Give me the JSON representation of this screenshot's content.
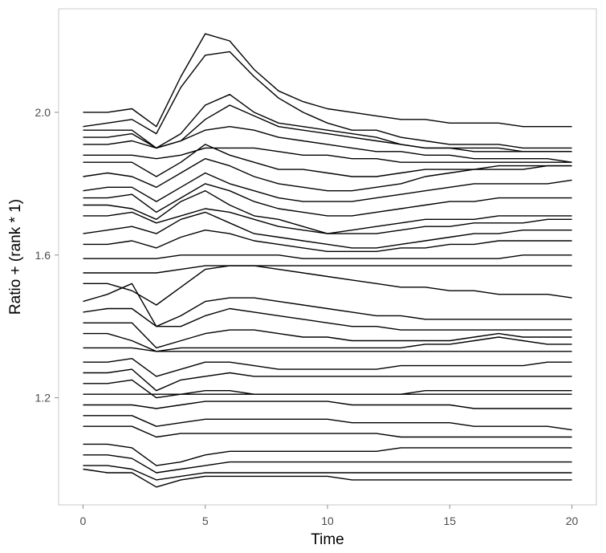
{
  "chart_data": {
    "type": "line",
    "title": "",
    "xlabel": "Time",
    "ylabel": "Ratio + (rank * 1)",
    "xlim": [
      -1,
      21
    ],
    "ylim": [
      0.9,
      2.29
    ],
    "x_ticks": [
      0,
      5,
      10,
      15,
      20
    ],
    "x_tick_labels": [
      "0",
      "5",
      "10",
      "15",
      "20"
    ],
    "y_ticks": [
      1.2,
      1.6,
      2.0
    ],
    "y_tick_labels": [
      "1.2",
      "1.6",
      "2.0"
    ],
    "grid": false,
    "legend": "none",
    "line_color": "#000000",
    "x": [
      0,
      1,
      2,
      3,
      4,
      5,
      6,
      7,
      8,
      9,
      10,
      11,
      12,
      13,
      14,
      15,
      16,
      17,
      18,
      19,
      20
    ],
    "series": [
      {
        "values": [
          2.0,
          2.0,
          2.01,
          1.96,
          2.1,
          2.22,
          2.2,
          2.12,
          2.06,
          2.03,
          2.01,
          2.0,
          1.99,
          1.98,
          1.98,
          1.97,
          1.97,
          1.97,
          1.96,
          1.96,
          1.96
        ]
      },
      {
        "values": [
          1.96,
          1.97,
          1.98,
          1.94,
          2.07,
          2.16,
          2.17,
          2.1,
          2.04,
          2.0,
          1.97,
          1.95,
          1.95,
          1.93,
          1.92,
          1.91,
          1.91,
          1.91,
          1.9,
          1.9,
          1.9
        ]
      },
      {
        "values": [
          1.95,
          1.95,
          1.95,
          1.9,
          1.94,
          2.02,
          2.05,
          2.0,
          1.97,
          1.96,
          1.95,
          1.94,
          1.93,
          1.91,
          1.9,
          1.9,
          1.9,
          1.9,
          1.89,
          1.89,
          1.89
        ]
      },
      {
        "values": [
          1.93,
          1.93,
          1.94,
          1.9,
          1.92,
          1.98,
          2.02,
          1.99,
          1.96,
          1.95,
          1.94,
          1.93,
          1.92,
          1.91,
          1.9,
          1.9,
          1.89,
          1.89,
          1.89,
          1.89,
          1.89
        ]
      },
      {
        "values": [
          1.91,
          1.91,
          1.92,
          1.9,
          1.92,
          1.95,
          1.96,
          1.95,
          1.93,
          1.92,
          1.91,
          1.9,
          1.89,
          1.89,
          1.88,
          1.88,
          1.87,
          1.87,
          1.87,
          1.87,
          1.86
        ]
      },
      {
        "values": [
          1.88,
          1.88,
          1.88,
          1.87,
          1.88,
          1.9,
          1.9,
          1.9,
          1.89,
          1.88,
          1.88,
          1.87,
          1.87,
          1.86,
          1.86,
          1.86,
          1.86,
          1.86,
          1.86,
          1.86,
          1.86
        ]
      },
      {
        "values": [
          1.86,
          1.86,
          1.86,
          1.82,
          1.86,
          1.91,
          1.88,
          1.86,
          1.84,
          1.84,
          1.83,
          1.82,
          1.82,
          1.83,
          1.84,
          1.84,
          1.84,
          1.85,
          1.85,
          1.85,
          1.85
        ]
      },
      {
        "values": [
          1.82,
          1.83,
          1.82,
          1.79,
          1.83,
          1.87,
          1.85,
          1.82,
          1.8,
          1.79,
          1.78,
          1.78,
          1.79,
          1.8,
          1.82,
          1.83,
          1.84,
          1.84,
          1.84,
          1.85,
          1.85
        ]
      },
      {
        "values": [
          1.78,
          1.79,
          1.79,
          1.75,
          1.79,
          1.83,
          1.8,
          1.78,
          1.76,
          1.75,
          1.75,
          1.75,
          1.76,
          1.77,
          1.78,
          1.79,
          1.8,
          1.8,
          1.8,
          1.8,
          1.81
        ]
      },
      {
        "values": [
          1.76,
          1.76,
          1.77,
          1.72,
          1.76,
          1.8,
          1.78,
          1.75,
          1.73,
          1.72,
          1.71,
          1.71,
          1.72,
          1.73,
          1.74,
          1.75,
          1.75,
          1.76,
          1.76,
          1.76,
          1.76
        ]
      },
      {
        "values": [
          1.74,
          1.74,
          1.73,
          1.7,
          1.75,
          1.78,
          1.74,
          1.71,
          1.7,
          1.68,
          1.66,
          1.67,
          1.68,
          1.69,
          1.7,
          1.7,
          1.7,
          1.71,
          1.71,
          1.71,
          1.71
        ]
      },
      {
        "values": [
          1.71,
          1.71,
          1.72,
          1.69,
          1.71,
          1.73,
          1.72,
          1.7,
          1.68,
          1.67,
          1.66,
          1.66,
          1.66,
          1.67,
          1.68,
          1.68,
          1.69,
          1.69,
          1.69,
          1.7,
          1.7
        ]
      },
      {
        "values": [
          1.66,
          1.67,
          1.68,
          1.66,
          1.7,
          1.72,
          1.69,
          1.66,
          1.65,
          1.64,
          1.63,
          1.62,
          1.62,
          1.63,
          1.64,
          1.65,
          1.66,
          1.66,
          1.67,
          1.67,
          1.67
        ]
      },
      {
        "values": [
          1.63,
          1.63,
          1.64,
          1.62,
          1.65,
          1.67,
          1.66,
          1.64,
          1.63,
          1.62,
          1.61,
          1.61,
          1.61,
          1.62,
          1.62,
          1.63,
          1.63,
          1.64,
          1.64,
          1.64,
          1.64
        ]
      },
      {
        "values": [
          1.59,
          1.59,
          1.59,
          1.59,
          1.6,
          1.6,
          1.6,
          1.6,
          1.6,
          1.59,
          1.59,
          1.59,
          1.59,
          1.59,
          1.59,
          1.59,
          1.59,
          1.59,
          1.6,
          1.6,
          1.6
        ]
      },
      {
        "values": [
          1.55,
          1.55,
          1.55,
          1.55,
          1.56,
          1.57,
          1.57,
          1.57,
          1.57,
          1.57,
          1.57,
          1.57,
          1.57,
          1.57,
          1.57,
          1.57,
          1.57,
          1.57,
          1.57,
          1.57,
          1.57
        ]
      },
      {
        "values": [
          1.52,
          1.52,
          1.5,
          1.46,
          1.51,
          1.56,
          1.57,
          1.57,
          1.56,
          1.55,
          1.54,
          1.53,
          1.52,
          1.51,
          1.51,
          1.5,
          1.5,
          1.49,
          1.49,
          1.49,
          1.48
        ]
      },
      {
        "values": [
          1.47,
          1.49,
          1.52,
          1.4,
          1.43,
          1.47,
          1.48,
          1.48,
          1.47,
          1.46,
          1.45,
          1.44,
          1.43,
          1.43,
          1.42,
          1.42,
          1.42,
          1.42,
          1.42,
          1.42,
          1.42
        ]
      },
      {
        "values": [
          1.44,
          1.45,
          1.45,
          1.4,
          1.4,
          1.43,
          1.45,
          1.44,
          1.43,
          1.42,
          1.41,
          1.4,
          1.4,
          1.39,
          1.39,
          1.39,
          1.39,
          1.39,
          1.39,
          1.39,
          1.39
        ]
      },
      {
        "values": [
          1.41,
          1.41,
          1.41,
          1.34,
          1.36,
          1.38,
          1.39,
          1.39,
          1.38,
          1.37,
          1.37,
          1.36,
          1.36,
          1.36,
          1.36,
          1.36,
          1.37,
          1.38,
          1.37,
          1.37,
          1.37
        ]
      },
      {
        "values": [
          1.38,
          1.38,
          1.36,
          1.33,
          1.34,
          1.34,
          1.34,
          1.34,
          1.34,
          1.34,
          1.34,
          1.34,
          1.34,
          1.34,
          1.35,
          1.35,
          1.36,
          1.37,
          1.36,
          1.35,
          1.35
        ]
      },
      {
        "values": [
          1.34,
          1.34,
          1.34,
          1.33,
          1.33,
          1.33,
          1.33,
          1.33,
          1.33,
          1.33,
          1.33,
          1.33,
          1.33,
          1.33,
          1.33,
          1.33,
          1.33,
          1.33,
          1.33,
          1.33,
          1.33
        ]
      },
      {
        "values": [
          1.3,
          1.3,
          1.31,
          1.26,
          1.28,
          1.3,
          1.3,
          1.29,
          1.28,
          1.28,
          1.28,
          1.28,
          1.28,
          1.29,
          1.29,
          1.29,
          1.29,
          1.29,
          1.29,
          1.3,
          1.3
        ]
      },
      {
        "values": [
          1.27,
          1.27,
          1.28,
          1.22,
          1.25,
          1.26,
          1.27,
          1.26,
          1.26,
          1.26,
          1.26,
          1.26,
          1.26,
          1.26,
          1.26,
          1.26,
          1.26,
          1.26,
          1.26,
          1.26,
          1.26
        ]
      },
      {
        "values": [
          1.24,
          1.24,
          1.25,
          1.2,
          1.21,
          1.22,
          1.22,
          1.21,
          1.21,
          1.21,
          1.21,
          1.21,
          1.21,
          1.21,
          1.22,
          1.22,
          1.22,
          1.22,
          1.22,
          1.22,
          1.22
        ]
      },
      {
        "values": [
          1.21,
          1.21,
          1.21,
          1.21,
          1.21,
          1.21,
          1.21,
          1.21,
          1.21,
          1.21,
          1.21,
          1.21,
          1.21,
          1.21,
          1.21,
          1.21,
          1.21,
          1.21,
          1.21,
          1.21,
          1.21
        ]
      },
      {
        "values": [
          1.18,
          1.18,
          1.18,
          1.17,
          1.18,
          1.19,
          1.19,
          1.19,
          1.19,
          1.19,
          1.19,
          1.18,
          1.18,
          1.18,
          1.18,
          1.18,
          1.17,
          1.17,
          1.17,
          1.17,
          1.17
        ]
      },
      {
        "values": [
          1.15,
          1.15,
          1.15,
          1.12,
          1.13,
          1.14,
          1.14,
          1.14,
          1.14,
          1.14,
          1.14,
          1.13,
          1.13,
          1.13,
          1.13,
          1.13,
          1.12,
          1.12,
          1.12,
          1.12,
          1.11
        ]
      },
      {
        "values": [
          1.12,
          1.12,
          1.12,
          1.09,
          1.1,
          1.1,
          1.1,
          1.1,
          1.1,
          1.1,
          1.1,
          1.1,
          1.1,
          1.09,
          1.09,
          1.09,
          1.09,
          1.09,
          1.09,
          1.09,
          1.09
        ]
      },
      {
        "values": [
          1.07,
          1.07,
          1.06,
          1.01,
          1.02,
          1.04,
          1.05,
          1.05,
          1.05,
          1.05,
          1.05,
          1.05,
          1.05,
          1.06,
          1.06,
          1.06,
          1.06,
          1.06,
          1.06,
          1.06,
          1.06
        ]
      },
      {
        "values": [
          1.04,
          1.04,
          1.03,
          0.99,
          1.0,
          1.01,
          1.02,
          1.02,
          1.02,
          1.02,
          1.02,
          1.02,
          1.02,
          1.02,
          1.02,
          1.02,
          1.02,
          1.02,
          1.02,
          1.02,
          1.02
        ]
      },
      {
        "values": [
          1.01,
          1.01,
          1.0,
          0.97,
          0.98,
          0.99,
          0.99,
          0.99,
          0.99,
          0.99,
          0.99,
          0.99,
          0.99,
          0.99,
          0.99,
          0.99,
          0.99,
          0.99,
          0.99,
          0.99,
          0.99
        ]
      },
      {
        "values": [
          1.0,
          0.99,
          0.99,
          0.95,
          0.97,
          0.98,
          0.98,
          0.98,
          0.98,
          0.98,
          0.98,
          0.97,
          0.97,
          0.97,
          0.97,
          0.97,
          0.97,
          0.97,
          0.97,
          0.97,
          0.97
        ]
      }
    ]
  }
}
